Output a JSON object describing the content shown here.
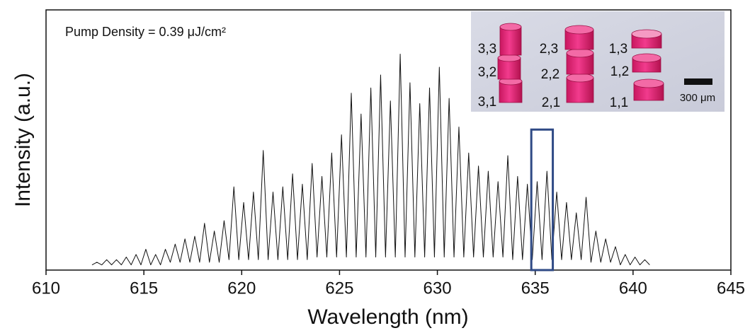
{
  "chart_data": {
    "type": "line",
    "xlabel": "Wavelength (nm)",
    "ylabel": "Intensity (a.u.)",
    "annotation": "Pump Density = 0.39 μJ/cm²",
    "color": "#111111",
    "xlim": [
      610,
      645
    ],
    "xticks": [
      610,
      615,
      620,
      625,
      630,
      635,
      640,
      645
    ],
    "ylim": [
      0,
      100
    ],
    "x": [
      612.35,
      612.6,
      612.85,
      613.1,
      613.35,
      613.6,
      613.85,
      614.1,
      614.35,
      614.6,
      614.85,
      615.1,
      615.35,
      615.6,
      615.85,
      616.1,
      616.35,
      616.6,
      616.85,
      617.1,
      617.35,
      617.6,
      617.85,
      618.1,
      618.35,
      618.6,
      618.85,
      619.1,
      619.35,
      619.6,
      619.85,
      620.1,
      620.35,
      620.6,
      620.85,
      621.1,
      621.35,
      621.6,
      621.85,
      622.1,
      622.35,
      622.6,
      622.85,
      623.1,
      623.35,
      623.6,
      623.85,
      624.1,
      624.35,
      624.6,
      624.85,
      625.1,
      625.35,
      625.6,
      625.85,
      626.1,
      626.35,
      626.6,
      626.85,
      627.1,
      627.35,
      627.6,
      627.85,
      628.1,
      628.35,
      628.6,
      628.85,
      629.1,
      629.35,
      629.6,
      629.85,
      630.1,
      630.35,
      630.6,
      630.85,
      631.1,
      631.35,
      631.6,
      631.85,
      632.1,
      632.35,
      632.6,
      632.85,
      633.1,
      633.35,
      633.6,
      633.85,
      634.1,
      634.35,
      634.6,
      634.85,
      635.1,
      635.35,
      635.6,
      635.85,
      636.1,
      636.35,
      636.6,
      636.85,
      637.1,
      637.35,
      637.6,
      637.85,
      638.1,
      638.35,
      638.6,
      638.85,
      639.1,
      639.35,
      639.6,
      639.85,
      640.1,
      640.35,
      640.6,
      640.85
    ],
    "values": [
      2,
      3,
      2,
      4,
      2,
      4,
      2,
      5,
      2,
      6,
      2,
      8,
      2,
      6,
      2,
      8,
      3,
      10,
      3,
      12,
      3,
      13,
      3,
      18,
      3,
      15,
      3,
      19,
      4,
      32,
      4,
      26,
      4,
      30,
      4,
      46,
      4,
      30,
      4,
      32,
      4,
      37,
      4,
      33,
      4,
      41,
      5,
      36,
      5,
      45,
      5,
      52,
      5,
      68,
      5,
      60,
      5,
      70,
      5,
      75,
      5,
      65,
      5,
      83,
      5,
      72,
      5,
      64,
      5,
      70,
      5,
      78,
      5,
      66,
      5,
      55,
      5,
      45,
      5,
      40,
      5,
      38,
      5,
      34,
      5,
      44,
      4,
      36,
      4,
      33,
      4,
      34,
      4,
      38,
      4,
      30,
      4,
      26,
      4,
      22,
      4,
      28,
      3,
      15,
      3,
      12,
      3,
      9,
      2,
      6,
      2,
      5,
      2,
      4,
      2
    ],
    "highlight": {
      "xlim": [
        634.8,
        635.9
      ],
      "ylim": [
        0,
        54
      ],
      "color": "#2f4a85"
    },
    "inset": {
      "labels": [
        "3,3",
        "2,3",
        "1,3",
        "3,2",
        "2,2",
        "1,2",
        "3,1",
        "2,1",
        "1,1"
      ],
      "scale_bar": "300 μm"
    }
  }
}
